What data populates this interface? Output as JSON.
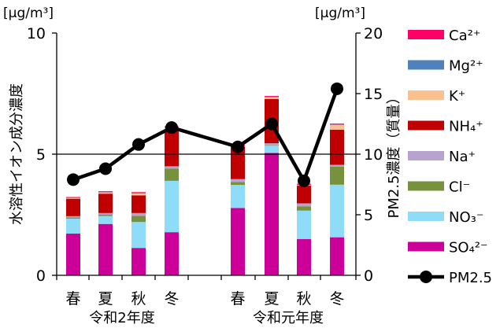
{
  "chart_data": {
    "type": "bar",
    "subtype": "stacked bar with line overlay",
    "left_axis": {
      "unit": "[μg/m³]",
      "label": "水溶性イオン成分濃度",
      "ylim": [
        0,
        10
      ],
      "ticks": [
        "0",
        "5",
        "10"
      ]
    },
    "right_axis": {
      "unit": "[μg/m³]",
      "label": "PM2.5濃度（質量）",
      "ylim": [
        0,
        20
      ],
      "ticks": [
        "0",
        "5",
        "10",
        "15",
        "20"
      ]
    },
    "categories": [
      "春",
      "夏",
      "秋",
      "冬",
      "春",
      "夏",
      "秋",
      "冬"
    ],
    "groups": [
      {
        "label": "令和2年度",
        "categories": [
          "春",
          "夏",
          "秋",
          "冬"
        ]
      },
      {
        "label": "令和元年度",
        "categories": [
          "春",
          "夏",
          "秋",
          "冬"
        ]
      }
    ],
    "gridline_y": 5,
    "series": [
      {
        "name": "SO₄²⁻",
        "color": "#cc0099",
        "values": [
          1.72,
          2.12,
          1.13,
          1.78,
          2.78,
          5.05,
          1.5,
          1.57
        ]
      },
      {
        "name": "NO₃⁻",
        "color": "#8fdcf8",
        "values": [
          0.62,
          0.33,
          1.07,
          2.12,
          0.95,
          0.3,
          1.17,
          2.17
        ]
      },
      {
        "name": "Cl⁻",
        "color": "#76923c",
        "values": [
          0.05,
          0.05,
          0.25,
          0.5,
          0.12,
          0.02,
          0.18,
          0.75
        ]
      },
      {
        "name": "Na⁺",
        "color": "#b7a3cd",
        "values": [
          0.05,
          0.07,
          0.12,
          0.1,
          0.12,
          0.08,
          0.12,
          0.07
        ]
      },
      {
        "name": "NH₄⁺",
        "color": "#c00000",
        "values": [
          0.72,
          0.8,
          0.73,
          1.5,
          1.35,
          1.83,
          0.73,
          1.45
        ]
      },
      {
        "name": "K⁺",
        "color": "#fac090",
        "values": [
          0.03,
          0.05,
          0.08,
          0.1,
          0.02,
          0.07,
          0.03,
          0.2
        ]
      },
      {
        "name": "Mg²⁺",
        "color": "#4f81bd",
        "values": [
          0.01,
          0.01,
          0.01,
          0.01,
          0.01,
          0.01,
          0.01,
          0.01
        ]
      },
      {
        "name": "Ca²⁺",
        "color": "#ff0066",
        "values": [
          0.03,
          0.04,
          0.04,
          0.04,
          0.04,
          0.04,
          0.04,
          0.04
        ]
      }
    ],
    "line_series": {
      "name": "PM2.5",
      "color": "#000000",
      "axis": "right",
      "values": [
        7.9,
        8.8,
        10.8,
        12.2,
        10.6,
        12.5,
        7.8,
        15.4
      ]
    },
    "legend_order": [
      "Ca²⁺",
      "Mg²⁺",
      "K⁺",
      "NH₄⁺",
      "Na⁺",
      "Cl⁻",
      "NO₃⁻",
      "SO₄²⁻",
      "PM2.5"
    ],
    "legend_position": "right"
  }
}
